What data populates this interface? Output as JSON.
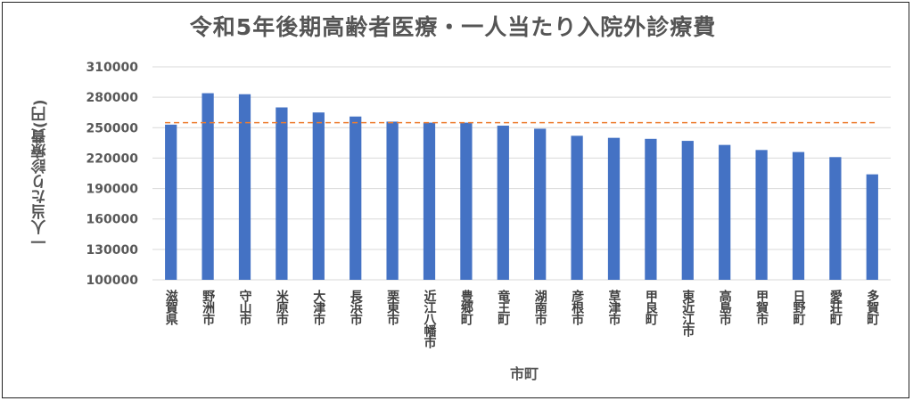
{
  "chart_data": {
    "type": "bar",
    "title": "令和5年後期高齢者医療・一人当たり入院外診療費",
    "xlabel": "市町",
    "ylabel": "一人当たり診療費(円)",
    "ylim": [
      100000,
      310000
    ],
    "yticks": [
      "100000",
      "130000",
      "160000",
      "190000",
      "220000",
      "250000",
      "280000",
      "310000"
    ],
    "categories": [
      "滋賀県",
      "野洲市",
      "守山市",
      "米原市",
      "大津市",
      "長浜市",
      "栗東市",
      "近江八幡市",
      "豊郷町",
      "竜王町",
      "湖南市",
      "彦根市",
      "草津市",
      "甲良町",
      "東近江市",
      "高島市",
      "甲賀市",
      "日野町",
      "愛荘町",
      "多賀町"
    ],
    "values": [
      253000,
      284000,
      283000,
      270000,
      265000,
      261000,
      256000,
      255000,
      255000,
      252000,
      249000,
      242000,
      240000,
      239000,
      237000,
      233000,
      228000,
      226000,
      221000,
      204000
    ],
    "reference_line": 255000,
    "grid": true,
    "bar_color": "#4472C4",
    "reference_color": "#ED7D31"
  }
}
